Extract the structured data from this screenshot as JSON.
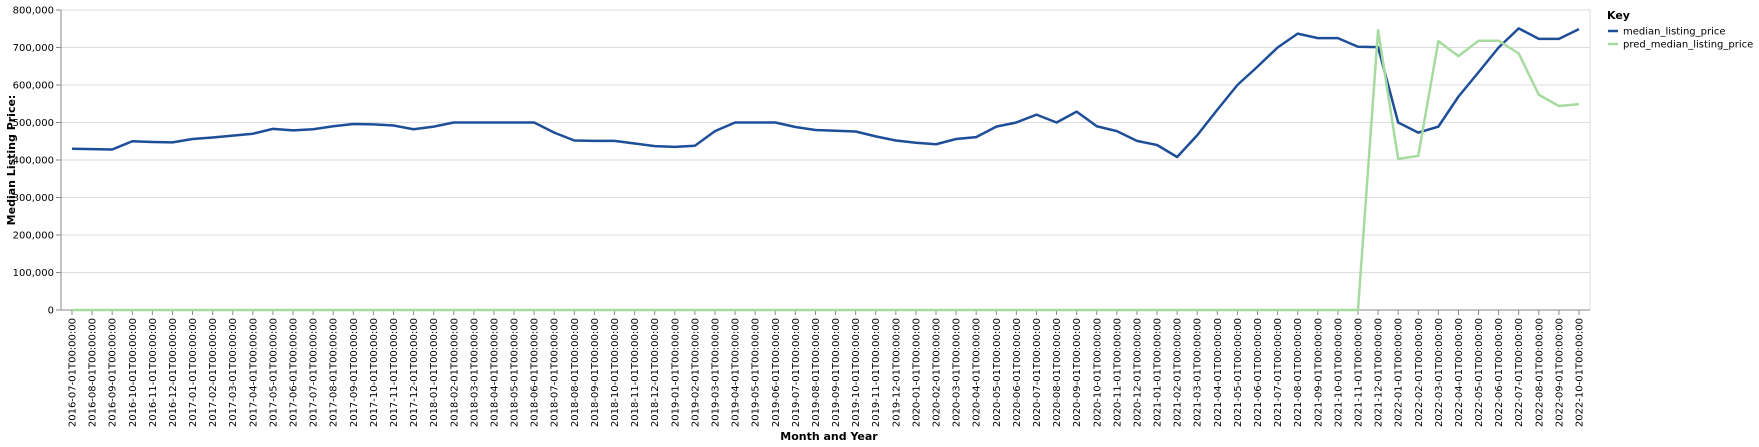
{
  "chart_data": {
    "type": "line",
    "xlabel": "Month and Year",
    "ylabel": "Median Listing Price:",
    "ylim": [
      0,
      800000
    ],
    "yticks": [
      "0",
      "100,000",
      "200,000",
      "300,000",
      "400,000",
      "500,000",
      "600,000",
      "700,000",
      "800,000"
    ],
    "grid": true,
    "legend": {
      "title": "Key",
      "placement": "top-right"
    },
    "x": [
      "2016-07-01T00:00:00",
      "2016-08-01T00:00:00",
      "2016-09-01T00:00:00",
      "2016-10-01T00:00:00",
      "2016-11-01T00:00:00",
      "2016-12-01T00:00:00",
      "2017-01-01T00:00:00",
      "2017-02-01T00:00:00",
      "2017-03-01T00:00:00",
      "2017-04-01T00:00:00",
      "2017-05-01T00:00:00",
      "2017-06-01T00:00:00",
      "2017-07-01T00:00:00",
      "2017-08-01T00:00:00",
      "2017-09-01T00:00:00",
      "2017-10-01T00:00:00",
      "2017-11-01T00:00:00",
      "2017-12-01T00:00:00",
      "2018-01-01T00:00:00",
      "2018-02-01T00:00:00",
      "2018-03-01T00:00:00",
      "2018-04-01T00:00:00",
      "2018-05-01T00:00:00",
      "2018-06-01T00:00:00",
      "2018-07-01T00:00:00",
      "2018-08-01T00:00:00",
      "2018-09-01T00:00:00",
      "2018-10-01T00:00:00",
      "2018-11-01T00:00:00",
      "2018-12-01T00:00:00",
      "2019-01-01T00:00:00",
      "2019-02-01T00:00:00",
      "2019-03-01T00:00:00",
      "2019-04-01T00:00:00",
      "2019-05-01T00:00:00",
      "2019-06-01T00:00:00",
      "2019-07-01T00:00:00",
      "2019-08-01T00:00:00",
      "2019-09-01T00:00:00",
      "2019-10-01T00:00:00",
      "2019-11-01T00:00:00",
      "2019-12-01T00:00:00",
      "2020-01-01T00:00:00",
      "2020-02-01T00:00:00",
      "2020-03-01T00:00:00",
      "2020-04-01T00:00:00",
      "2020-05-01T00:00:00",
      "2020-06-01T00:00:00",
      "2020-07-01T00:00:00",
      "2020-08-01T00:00:00",
      "2020-09-01T00:00:00",
      "2020-10-01T00:00:00",
      "2020-11-01T00:00:00",
      "2020-12-01T00:00:00",
      "2021-01-01T00:00:00",
      "2021-02-01T00:00:00",
      "2021-03-01T00:00:00",
      "2021-04-01T00:00:00",
      "2021-05-01T00:00:00",
      "2021-06-01T00:00:00",
      "2021-07-01T00:00:00",
      "2021-08-01T00:00:00",
      "2021-09-01T00:00:00",
      "2021-10-01T00:00:00",
      "2021-11-01T00:00:00",
      "2021-12-01T00:00:00",
      "2022-01-01T00:00:00",
      "2022-02-01T00:00:00",
      "2022-03-01T00:00:00",
      "2022-04-01T00:00:00",
      "2022-05-01T00:00:00",
      "2022-06-01T00:00:00",
      "2022-07-01T00:00:00",
      "2022-08-01T00:00:00",
      "2022-09-01T00:00:00",
      "2022-10-01T00:00:00"
    ],
    "series": [
      {
        "name": "median_listing_price",
        "color": "#1f4e99",
        "values": [
          430000,
          429000,
          428000,
          450000,
          448000,
          447000,
          456000,
          460000,
          465000,
          470000,
          483000,
          479000,
          482000,
          490000,
          496000,
          495000,
          492000,
          482000,
          489000,
          500000,
          500000,
          500000,
          500000,
          500000,
          473000,
          452000,
          451000,
          451000,
          444000,
          437000,
          435000,
          438000,
          477000,
          500000,
          500000,
          500000,
          488000,
          480000,
          478000,
          476000,
          463000,
          452000,
          446000,
          442000,
          456000,
          461000,
          489000,
          500000,
          521000,
          500000,
          529000,
          490000,
          477000,
          451000,
          440000,
          408000,
          466000,
          534000,
          600000,
          649000,
          700000,
          737000,
          725000,
          725000,
          702000,
          701000,
          500000,
          473000,
          489000,
          569000,
          634000,
          700000,
          751000,
          723000,
          723000,
          749000
        ]
      },
      {
        "name": "pred_median_listing_price",
        "color": "#a6dba0",
        "values": [
          0,
          0,
          0,
          0,
          0,
          0,
          0,
          0,
          0,
          0,
          0,
          0,
          0,
          0,
          0,
          0,
          0,
          0,
          0,
          0,
          0,
          0,
          0,
          0,
          0,
          0,
          0,
          0,
          0,
          0,
          0,
          0,
          0,
          0,
          0,
          0,
          0,
          0,
          0,
          0,
          0,
          0,
          0,
          0,
          0,
          0,
          0,
          0,
          0,
          0,
          0,
          0,
          0,
          0,
          0,
          0,
          0,
          0,
          0,
          0,
          0,
          0,
          0,
          0,
          0,
          746000,
          403000,
          411000,
          717000,
          677000,
          718000,
          718000,
          684000,
          574000,
          544000,
          549000
        ]
      }
    ]
  }
}
